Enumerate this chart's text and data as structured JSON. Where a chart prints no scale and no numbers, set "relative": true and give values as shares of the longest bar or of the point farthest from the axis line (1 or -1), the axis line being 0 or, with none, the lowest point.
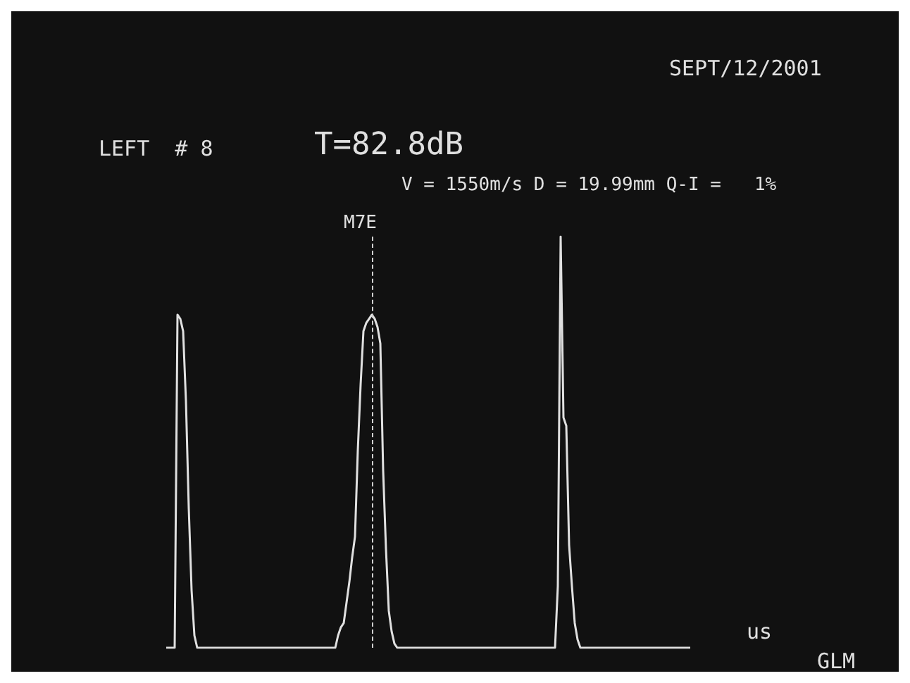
{
  "chart_data": {
    "type": "line",
    "relative": true,
    "xlabel": "us",
    "annotations": [
      "SEPT/12/2001",
      "LEFT  # 8",
      "T=82.8dB",
      "V = 1550m/s D = 19.99mm Q-I =   1%",
      "GLM",
      "M7E"
    ],
    "marker": "none",
    "line_style": "solid",
    "categories": [
      null,
      null,
      null,
      null,
      null,
      null,
      null,
      null,
      null,
      null,
      null,
      null,
      null,
      null,
      null,
      null,
      null,
      null,
      null,
      null,
      null,
      null,
      null,
      null,
      null,
      null,
      null,
      null,
      null,
      null,
      null,
      null,
      null,
      null,
      null,
      null,
      null,
      null,
      null,
      null,
      null,
      null,
      null,
      null,
      null,
      null,
      null,
      null,
      null,
      null,
      null,
      null,
      null,
      null,
      null,
      null,
      null,
      null,
      null,
      null,
      null,
      null,
      null,
      null,
      null,
      null,
      null,
      null,
      null,
      null,
      null,
      null,
      null,
      null,
      null,
      null,
      null,
      null,
      null,
      null,
      null,
      null,
      null,
      null,
      null,
      null,
      null,
      null,
      null,
      null,
      null,
      null,
      null,
      null,
      null,
      null,
      null,
      null,
      null,
      null,
      null,
      null,
      null,
      null,
      null,
      null,
      null,
      null,
      null,
      null,
      null,
      null,
      null,
      null,
      null,
      null,
      null,
      null,
      null,
      null,
      null,
      null,
      null,
      null,
      null,
      null,
      null,
      null,
      null,
      null,
      null,
      null,
      null,
      null,
      null,
      null,
      null,
      null,
      null,
      null,
      null,
      null,
      null,
      null,
      null,
      null,
      null,
      null,
      null,
      null,
      null,
      null,
      null,
      null,
      null,
      null,
      null,
      null,
      null,
      null,
      null,
      null,
      null,
      null,
      null,
      null,
      null,
      null,
      null,
      null,
      null,
      null,
      null,
      null,
      null,
      null,
      null,
      null,
      null,
      null,
      null,
      null,
      null,
      null,
      null,
      null,
      null
    ],
    "series": [
      {
        "color": "#e0e0e0",
        "values": [
          0,
          0,
          0,
          0,
          0.81,
          0.8,
          0.77,
          0.6,
          0.34,
          0.14,
          0.03,
          0,
          0,
          0,
          0,
          0,
          0,
          0,
          0,
          0,
          0,
          0,
          0,
          0,
          0,
          0,
          0,
          0,
          0,
          0,
          0,
          0,
          0,
          0,
          0,
          0,
          0,
          0,
          0,
          0,
          0,
          0,
          0,
          0,
          0,
          0,
          0,
          0,
          0,
          0,
          0,
          0,
          0,
          0,
          0,
          0,
          0,
          0,
          0,
          0,
          0,
          0.03,
          0.05,
          0.06,
          0.11,
          0.16,
          0.22,
          0.27,
          0.48,
          0.64,
          0.77,
          0.79,
          0.8,
          0.81,
          0.8,
          0.78,
          0.74,
          0.43,
          0.24,
          0.09,
          0.04,
          0.01,
          0,
          0,
          0,
          0,
          0,
          0,
          0,
          0,
          0,
          0,
          0,
          0,
          0,
          0,
          0,
          0,
          0,
          0,
          0,
          0,
          0,
          0,
          0,
          0,
          0,
          0,
          0,
          0,
          0,
          0,
          0,
          0,
          0,
          0,
          0,
          0,
          0,
          0,
          0,
          0,
          0,
          0,
          0,
          0,
          0,
          0,
          0,
          0,
          0,
          0,
          0,
          0,
          0,
          0,
          0,
          0,
          0,
          0.15,
          1,
          0.56,
          0.54,
          0.25,
          0.15,
          0.06,
          0.02,
          0,
          0,
          0,
          0,
          0,
          0,
          0,
          0,
          0,
          0,
          0,
          0,
          0,
          0,
          0,
          0,
          0,
          0,
          0,
          0,
          0,
          0,
          0,
          0,
          0,
          0,
          0,
          0,
          0,
          0,
          0,
          0,
          0,
          0,
          0,
          0,
          0,
          0,
          0,
          0
        ]
      }
    ]
  }
}
